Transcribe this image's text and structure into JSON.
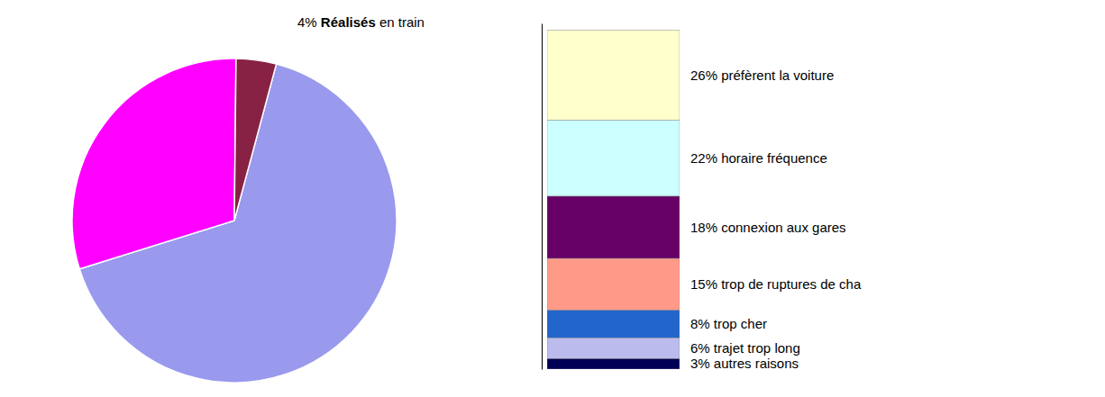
{
  "chart_data": [
    {
      "type": "pie",
      "values": [
        66,
        30,
        4
      ],
      "colors": [
        "#9999EE",
        "#FF00FF",
        "#882244"
      ],
      "annotations": [
        "4% ",
        "Réalisés",
        " en train"
      ]
    },
    {
      "type": "bar",
      "stacked": true,
      "categories": [
        null
      ],
      "series": [
        {
          "name": "26% préfèrent la voiture",
          "color": "#FFFFCC",
          "values": [
            26
          ]
        },
        {
          "name": "22% horaire fréquence",
          "color": "#CCFFFF",
          "values": [
            22
          ]
        },
        {
          "name": "18% connexion aux gares",
          "color": "#660066",
          "values": [
            18
          ]
        },
        {
          "name": "15% trop de ruptures de cha",
          "color": "#FF9988",
          "values": [
            15
          ]
        },
        {
          "name": "8% trop cher",
          "color": "#2266CC",
          "values": [
            8
          ]
        },
        {
          "name": "6% trajet trop long",
          "color": "#BBBBEE",
          "values": [
            6
          ]
        },
        {
          "name": "3% autres raisons",
          "color": "#000055",
          "values": [
            3
          ]
        }
      ],
      "ylim": [
        0,
        100
      ],
      "tick_labels": false
    }
  ]
}
